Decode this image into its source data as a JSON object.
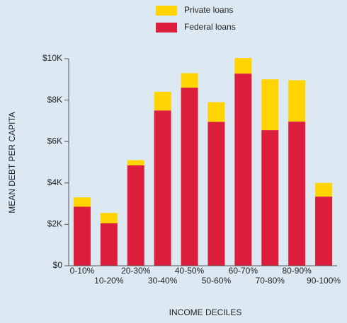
{
  "chart_data": {
    "type": "stacked_bar",
    "categories": [
      "0-10%",
      "10-20%",
      "20-30%",
      "30-40%",
      "40-50%",
      "50-60%",
      "60-70%",
      "70-80%",
      "80-90%",
      "90-100%"
    ],
    "series": [
      {
        "name": "Federal loans",
        "color": "#dc1e3c",
        "values": [
          2850,
          2050,
          4850,
          7500,
          8600,
          6950,
          9280,
          6550,
          6960,
          3340
        ]
      },
      {
        "name": "Private loans",
        "color": "#ffd400",
        "values": [
          450,
          500,
          250,
          900,
          700,
          950,
          750,
          2450,
          2000,
          660
        ]
      }
    ],
    "xlabel": "INCOME DECILES",
    "ylabel": "MEAN DEBT PER CAPITA",
    "ylim": [
      0,
      10000
    ],
    "yticks": [
      {
        "value": 0,
        "label": "$0"
      },
      {
        "value": 2000,
        "label": "$2K"
      },
      {
        "value": 4000,
        "label": "$4K"
      },
      {
        "value": 6000,
        "label": "$6K"
      },
      {
        "value": 8000,
        "label": "$8K"
      },
      {
        "value": 10000,
        "label": "$10K"
      }
    ],
    "legend": "top"
  }
}
